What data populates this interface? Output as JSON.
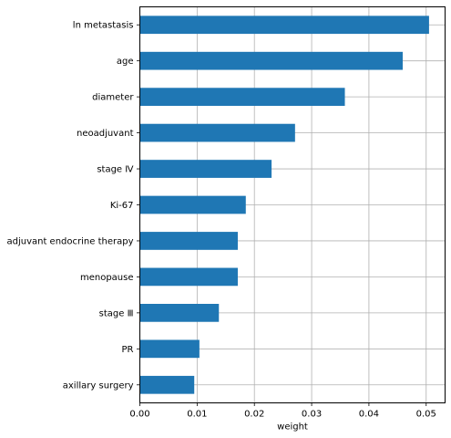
{
  "chart_data": {
    "type": "bar",
    "orientation": "horizontal",
    "categories": [
      "ln metastasis",
      "age",
      "diameter",
      "neoadjuvant",
      "stage Ⅳ",
      "Ki-67",
      "adjuvant endocrine therapy",
      "menopause",
      "stage Ⅲ",
      "PR",
      "axillary surgery"
    ],
    "values": [
      0.0505,
      0.0459,
      0.0358,
      0.0271,
      0.023,
      0.0185,
      0.0171,
      0.0171,
      0.0138,
      0.0104,
      0.0095
    ],
    "title": "",
    "xlabel": "weight",
    "ylabel": "",
    "xlim": [
      0,
      0.0533
    ],
    "xticks": [
      0.0,
      0.01,
      0.02,
      0.03,
      0.04,
      0.05
    ],
    "xtick_labels": [
      "0.00",
      "0.01",
      "0.02",
      "0.03",
      "0.04",
      "0.05"
    ],
    "grid": true,
    "bar_color": "#1f77b4",
    "grid_color": "#b0b0b0"
  }
}
